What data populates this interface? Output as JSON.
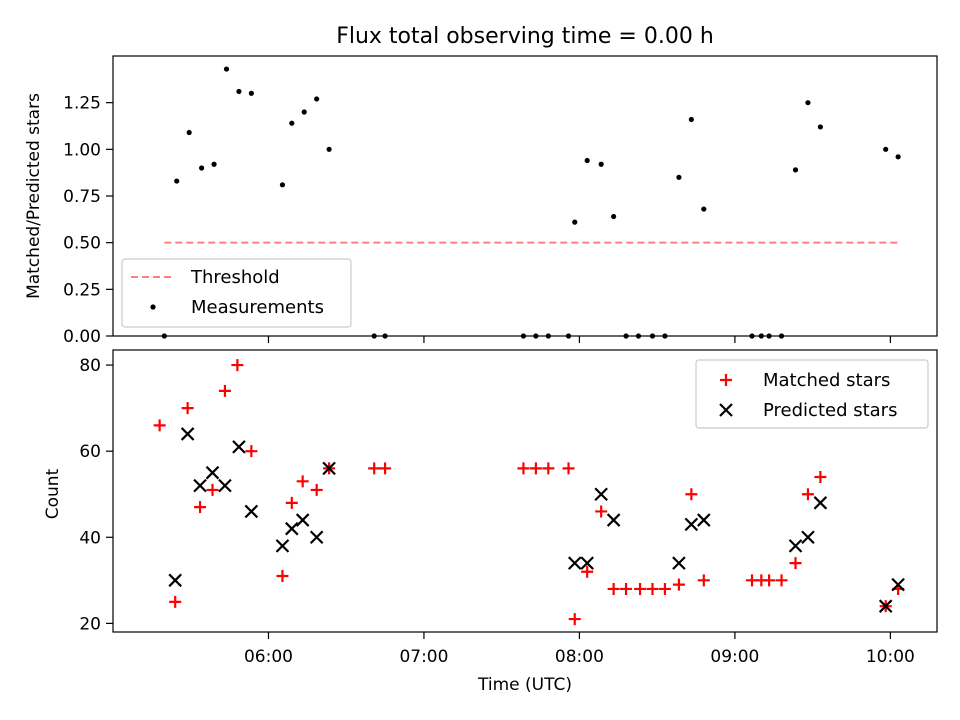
{
  "chart_data": [
    {
      "type": "scatter",
      "title": "Flux total observing time = 0.00 h",
      "ylabel": "Matched/Predicted stars",
      "xlabel": "",
      "x_unit": "hours (UTC)",
      "xlim": [
        5.0,
        10.3
      ],
      "ylim": [
        0,
        1.5
      ],
      "yticks": [
        0.0,
        0.25,
        0.5,
        0.75,
        1.0,
        1.25
      ],
      "ytick_labels": [
        "0.00",
        "0.25",
        "0.50",
        "0.75",
        "1.00",
        "1.25"
      ],
      "grid": false,
      "legend": {
        "position": "lower-left",
        "entries": [
          "Threshold",
          "Measurements"
        ]
      },
      "threshold": {
        "name": "Threshold",
        "value": 0.5,
        "x_range": [
          5.33,
          10.06
        ],
        "color": "#ff7f7f",
        "style": "dashed"
      },
      "series": [
        {
          "name": "Measurements",
          "color": "#000000",
          "marker": "dot",
          "points": [
            [
              5.33,
              0.0
            ],
            [
              5.41,
              0.83
            ],
            [
              5.49,
              1.09
            ],
            [
              5.57,
              0.9
            ],
            [
              5.65,
              0.92
            ],
            [
              5.73,
              1.43
            ],
            [
              5.81,
              1.31
            ],
            [
              5.89,
              1.3
            ],
            [
              6.09,
              0.81
            ],
            [
              6.15,
              1.14
            ],
            [
              6.23,
              1.2
            ],
            [
              6.31,
              1.27
            ],
            [
              6.39,
              1.0
            ],
            [
              6.68,
              0.0
            ],
            [
              6.75,
              0.0
            ],
            [
              7.64,
              0.0
            ],
            [
              7.72,
              0.0
            ],
            [
              7.8,
              0.0
            ],
            [
              7.93,
              0.0
            ],
            [
              7.97,
              0.61
            ],
            [
              8.05,
              0.94
            ],
            [
              8.14,
              0.92
            ],
            [
              8.22,
              0.64
            ],
            [
              8.3,
              0.0
            ],
            [
              8.38,
              0.0
            ],
            [
              8.47,
              0.0
            ],
            [
              8.55,
              0.0
            ],
            [
              8.64,
              0.85
            ],
            [
              8.72,
              1.16
            ],
            [
              8.8,
              0.68
            ],
            [
              9.11,
              0.0
            ],
            [
              9.17,
              0.0
            ],
            [
              9.22,
              0.0
            ],
            [
              9.3,
              0.0
            ],
            [
              9.39,
              0.89
            ],
            [
              9.47,
              1.25
            ],
            [
              9.55,
              1.12
            ],
            [
              9.97,
              1.0
            ],
            [
              10.05,
              0.96
            ]
          ]
        }
      ]
    },
    {
      "type": "scatter",
      "title": "",
      "xlabel": "Time (UTC)",
      "ylabel": "Count",
      "x_unit": "hours (UTC)",
      "xlim": [
        5.0,
        10.3
      ],
      "ylim": [
        18,
        83.5
      ],
      "xticks": [
        6,
        7,
        8,
        9,
        10
      ],
      "xtick_labels": [
        "06:00",
        "07:00",
        "08:00",
        "09:00",
        "10:00"
      ],
      "yticks": [
        20,
        40,
        60,
        80
      ],
      "ytick_labels": [
        "20",
        "40",
        "60",
        "80"
      ],
      "grid": false,
      "legend": {
        "position": "upper-right",
        "entries": [
          "Matched stars",
          "Predicted stars"
        ]
      },
      "series": [
        {
          "name": "Matched stars",
          "color": "#ff0000",
          "marker": "plus",
          "points": [
            [
              5.3,
              66
            ],
            [
              5.4,
              25
            ],
            [
              5.48,
              70
            ],
            [
              5.56,
              47
            ],
            [
              5.64,
              51
            ],
            [
              5.72,
              74
            ],
            [
              5.8,
              80
            ],
            [
              5.89,
              60
            ],
            [
              6.09,
              31
            ],
            [
              6.15,
              48
            ],
            [
              6.22,
              53
            ],
            [
              6.31,
              51
            ],
            [
              6.39,
              56
            ],
            [
              6.68,
              56
            ],
            [
              6.75,
              56
            ],
            [
              7.64,
              56
            ],
            [
              7.72,
              56
            ],
            [
              7.8,
              56
            ],
            [
              7.93,
              56
            ],
            [
              7.97,
              21
            ],
            [
              8.05,
              32
            ],
            [
              8.14,
              46
            ],
            [
              8.22,
              28
            ],
            [
              8.3,
              28
            ],
            [
              8.39,
              28
            ],
            [
              8.47,
              28
            ],
            [
              8.55,
              28
            ],
            [
              8.64,
              29
            ],
            [
              8.72,
              50
            ],
            [
              8.8,
              30
            ],
            [
              9.11,
              30
            ],
            [
              9.17,
              30
            ],
            [
              9.22,
              30
            ],
            [
              9.3,
              30
            ],
            [
              9.39,
              34
            ],
            [
              9.47,
              50
            ],
            [
              9.55,
              54
            ],
            [
              9.97,
              24
            ],
            [
              10.05,
              28
            ]
          ]
        },
        {
          "name": "Predicted stars",
          "color": "#000000",
          "marker": "x",
          "points": [
            [
              5.4,
              30
            ],
            [
              5.48,
              64
            ],
            [
              5.56,
              52
            ],
            [
              5.64,
              55
            ],
            [
              5.72,
              52
            ],
            [
              5.81,
              61
            ],
            [
              5.89,
              46
            ],
            [
              6.09,
              38
            ],
            [
              6.15,
              42
            ],
            [
              6.22,
              44
            ],
            [
              6.31,
              40
            ],
            [
              6.39,
              56
            ],
            [
              7.97,
              34
            ],
            [
              8.05,
              34
            ],
            [
              8.14,
              50
            ],
            [
              8.22,
              44
            ],
            [
              8.64,
              34
            ],
            [
              8.72,
              43
            ],
            [
              8.8,
              44
            ],
            [
              9.39,
              38
            ],
            [
              9.47,
              40
            ],
            [
              9.55,
              48
            ],
            [
              9.97,
              24
            ],
            [
              10.05,
              29
            ]
          ]
        }
      ]
    }
  ]
}
